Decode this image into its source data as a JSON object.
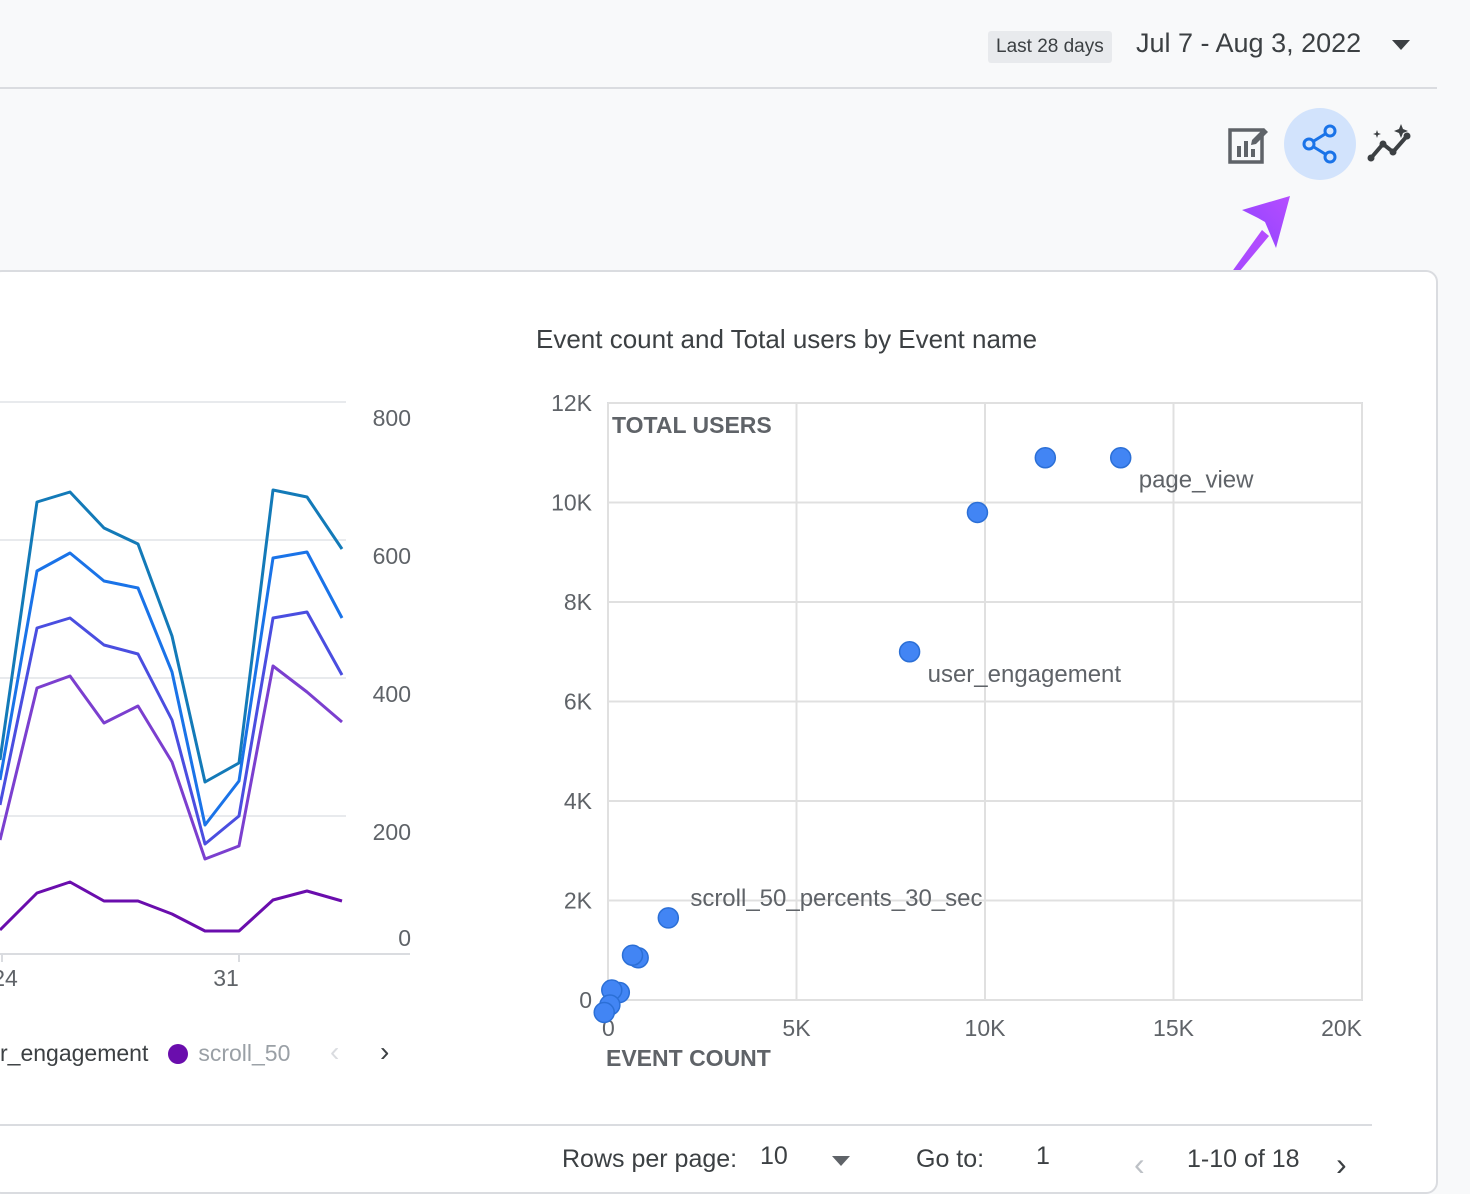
{
  "header": {
    "date_preset": "Last 28 days",
    "date_range": "Jul 7 - Aug 3, 2022"
  },
  "toolbar": {
    "edit_icon": "edit-chart-icon",
    "share_icon": "share-icon",
    "insights_icon": "insights-icon"
  },
  "line_chart": {
    "y_ticks": [
      "800",
      "600",
      "400",
      "200",
      "0"
    ],
    "x_ticks": [
      "24",
      "31"
    ],
    "legend": {
      "item1": "r_engagement",
      "item2": "scroll_50"
    },
    "series_colors": [
      "#137ab8",
      "#1a73e8",
      "#4a4ee0",
      "#7b3fcf",
      "#6a0dad"
    ]
  },
  "chart_data": {
    "type": "scatter",
    "title": "Event count and Total users by Event name",
    "xlabel": "EVENT COUNT",
    "ylabel": "TOTAL USERS",
    "xlim": [
      0,
      20000
    ],
    "ylim": [
      0,
      12000
    ],
    "x_tick_labels": [
      "0",
      "5K",
      "10K",
      "15K",
      "20K"
    ],
    "y_tick_labels": [
      "0",
      "2K",
      "4K",
      "6K",
      "8K",
      "10K",
      "12K"
    ],
    "points": [
      {
        "x": 13600,
        "y": 10900,
        "label": "page_view"
      },
      {
        "x": 11600,
        "y": 10900,
        "label": ""
      },
      {
        "x": 9800,
        "y": 9800,
        "label": ""
      },
      {
        "x": 8000,
        "y": 7000,
        "label": "user_engagement"
      },
      {
        "x": 1600,
        "y": 1650,
        "label": "scroll_50_percents_30_sec"
      },
      {
        "x": 800,
        "y": 850,
        "label": ""
      },
      {
        "x": 650,
        "y": 900,
        "label": ""
      },
      {
        "x": 300,
        "y": 150,
        "label": ""
      },
      {
        "x": 100,
        "y": 200,
        "label": ""
      },
      {
        "x": 50,
        "y": -100,
        "label": ""
      },
      {
        "x": -100,
        "y": -250,
        "label": ""
      }
    ],
    "point_color": "#4285f4",
    "grid": true
  },
  "pagination": {
    "rows_label": "Rows per page:",
    "rows_value": "10",
    "goto_label": "Go to:",
    "goto_value": "1",
    "range": "1-10 of 18"
  }
}
